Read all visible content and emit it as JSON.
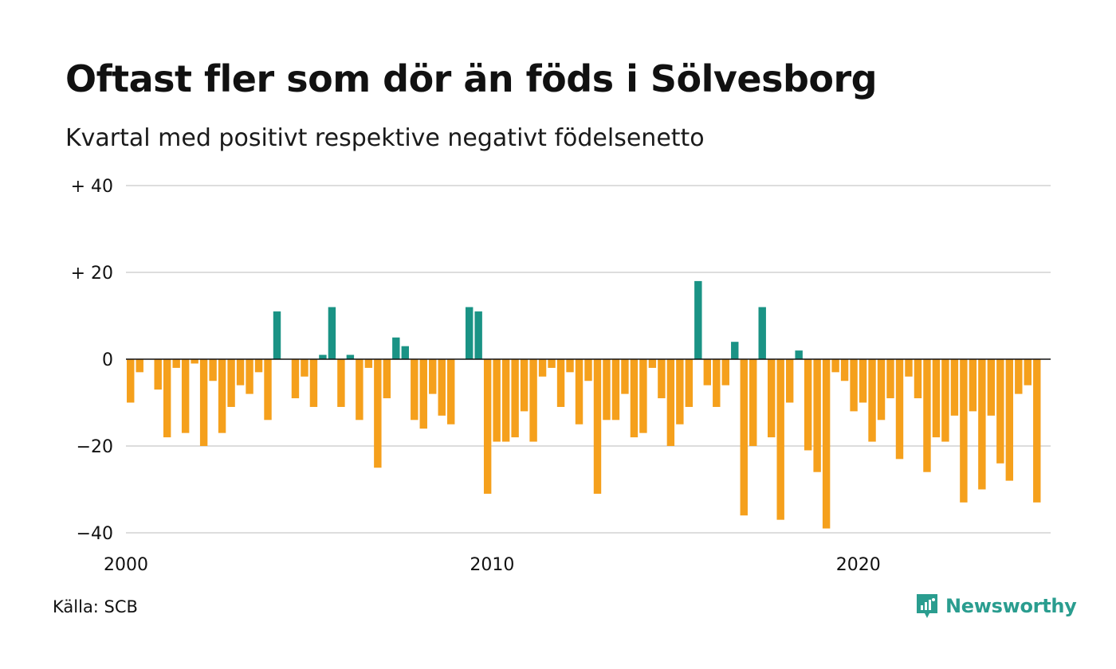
{
  "title": "Oftast fler som dör än föds i Sölvesborg",
  "subtitle": "Kvartal med positivt respektive negativt födelsenetto",
  "source": "Källa: SCB",
  "brand": {
    "name": "Newsworthy",
    "icon": "newsworthy-logo-icon",
    "color": "#2a9d8f"
  },
  "chart_data": {
    "type": "bar",
    "x_start": 2000,
    "periods_per_year": 4,
    "xlim": [
      2000,
      2025.25
    ],
    "x_ticks": [
      {
        "value": 2000,
        "label": "2000"
      },
      {
        "value": 2010,
        "label": "2010"
      },
      {
        "value": 2020,
        "label": "2020"
      }
    ],
    "ylim": [
      -40,
      40
    ],
    "y_ticks": [
      {
        "value": 40,
        "label": "+ 40"
      },
      {
        "value": 20,
        "label": "+ 20"
      },
      {
        "value": 0,
        "label": "0"
      },
      {
        "value": -20,
        "label": "−20"
      },
      {
        "value": -40,
        "label": "−40"
      }
    ],
    "grid": true,
    "colors": {
      "positive": "#1a9385",
      "negative": "#f5a01c",
      "grid": "#dddddd",
      "zero_line": "#111111"
    },
    "values": [
      -10,
      -3,
      0,
      -7,
      -18,
      -2,
      -17,
      -1,
      -20,
      -5,
      -17,
      -11,
      -6,
      -8,
      -3,
      -14,
      11,
      0,
      -9,
      -4,
      -11,
      1,
      12,
      -11,
      1,
      -14,
      -2,
      -25,
      -9,
      5,
      3,
      -14,
      -16,
      -8,
      -13,
      -15,
      0,
      12,
      11,
      -31,
      -19,
      -19,
      -18,
      -12,
      -19,
      -4,
      -2,
      -11,
      -3,
      -15,
      -5,
      -31,
      -14,
      -14,
      -8,
      -18,
      -17,
      -2,
      -9,
      -20,
      -15,
      -11,
      18,
      -6,
      -11,
      -6,
      4,
      -36,
      -20,
      12,
      -18,
      -37,
      -10,
      2,
      -21,
      -26,
      -39,
      -3,
      -5,
      -12,
      -10,
      -19,
      -14,
      -9,
      -23,
      -4,
      -9,
      -26,
      -18,
      -19,
      -13,
      -33,
      -12,
      -30,
      -13,
      -24,
      -28,
      -8,
      -6,
      -33
    ]
  }
}
